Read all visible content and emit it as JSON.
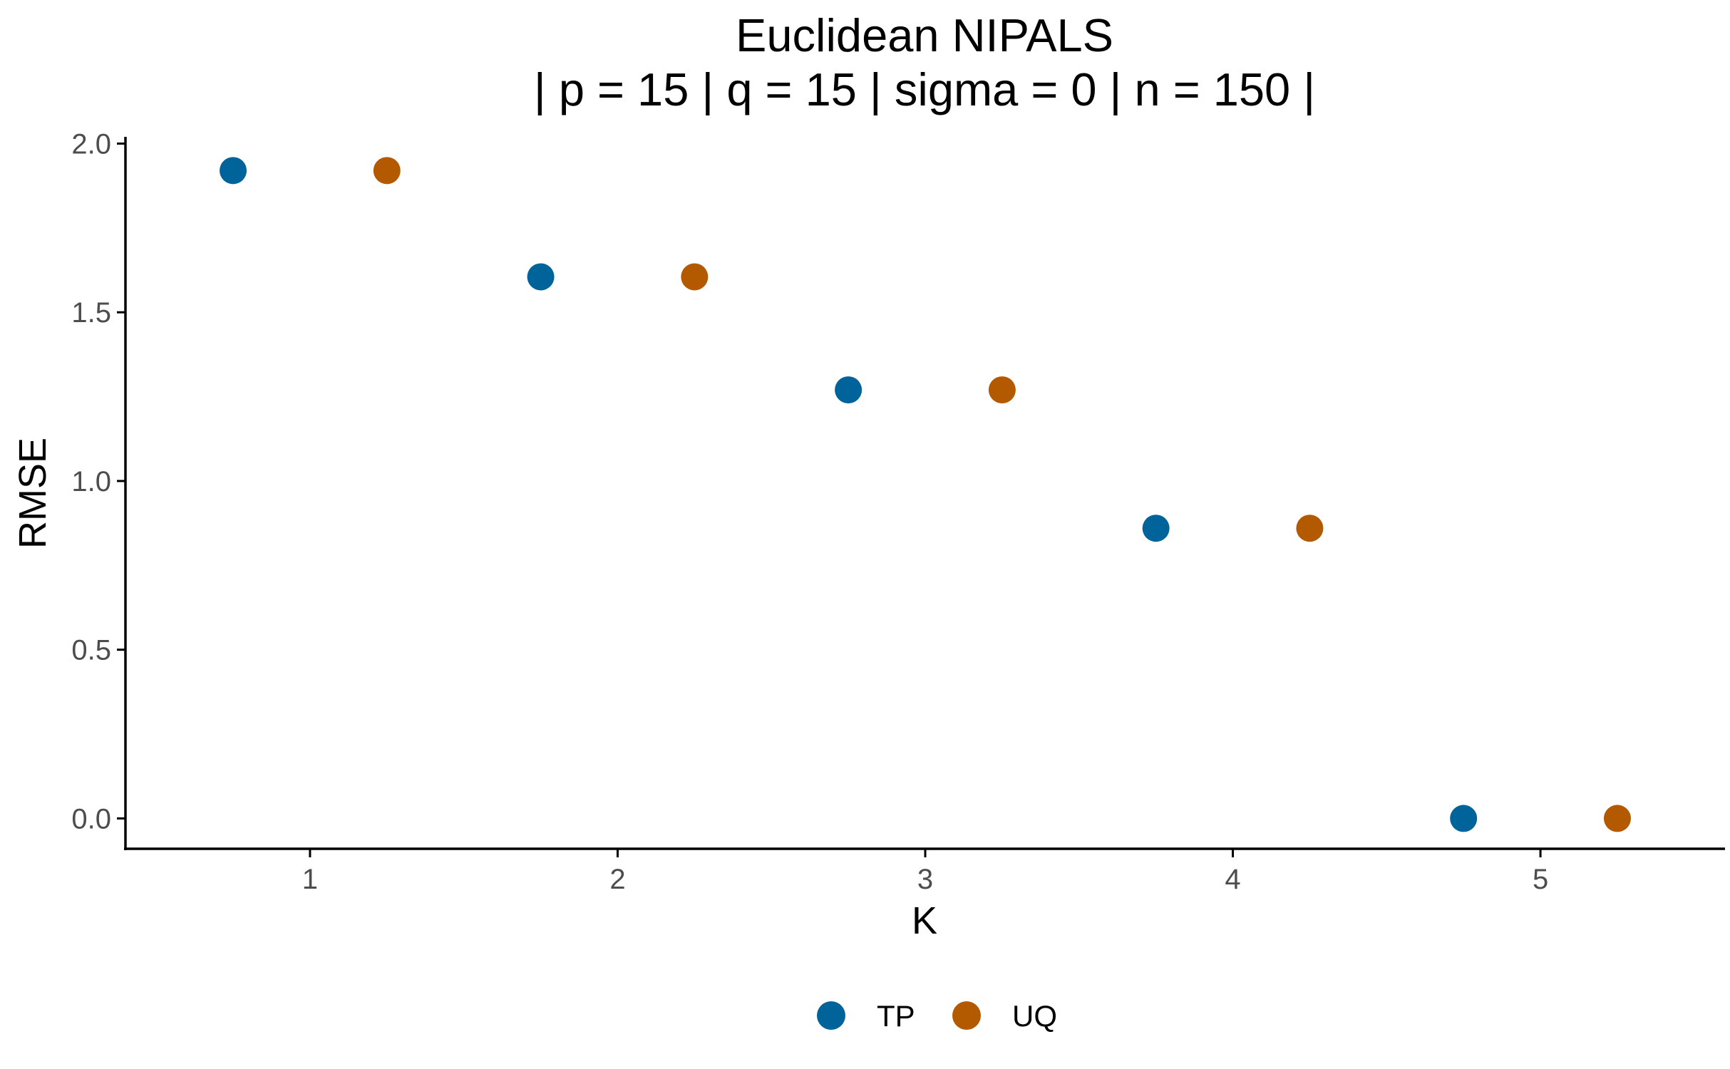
{
  "chart_data": {
    "type": "scatter",
    "title_line1": "Euclidean NIPALS",
    "title_line2": "| p = 15 | q = 15 | sigma = 0 | n = 150 |",
    "xlabel": "K",
    "ylabel": "RMSE",
    "x_ticks": [
      "1",
      "2",
      "3",
      "4",
      "5"
    ],
    "y_ticks": [
      "0.0",
      "0.5",
      "1.0",
      "1.5",
      "2.0"
    ],
    "categories": [
      1,
      2,
      3,
      4,
      5
    ],
    "ylim": [
      -0.09,
      2.02
    ],
    "xlim": [
      0.4,
      5.6
    ],
    "grid": false,
    "legend_position": "bottom",
    "dodge": 0.25,
    "series": [
      {
        "name": "TP",
        "color": "#00649a",
        "values": [
          1.92,
          1.605,
          1.27,
          0.86,
          0.0
        ]
      },
      {
        "name": "UQ",
        "color": "#b35900",
        "values": [
          1.92,
          1.605,
          1.27,
          0.86,
          0.0
        ]
      }
    ]
  }
}
